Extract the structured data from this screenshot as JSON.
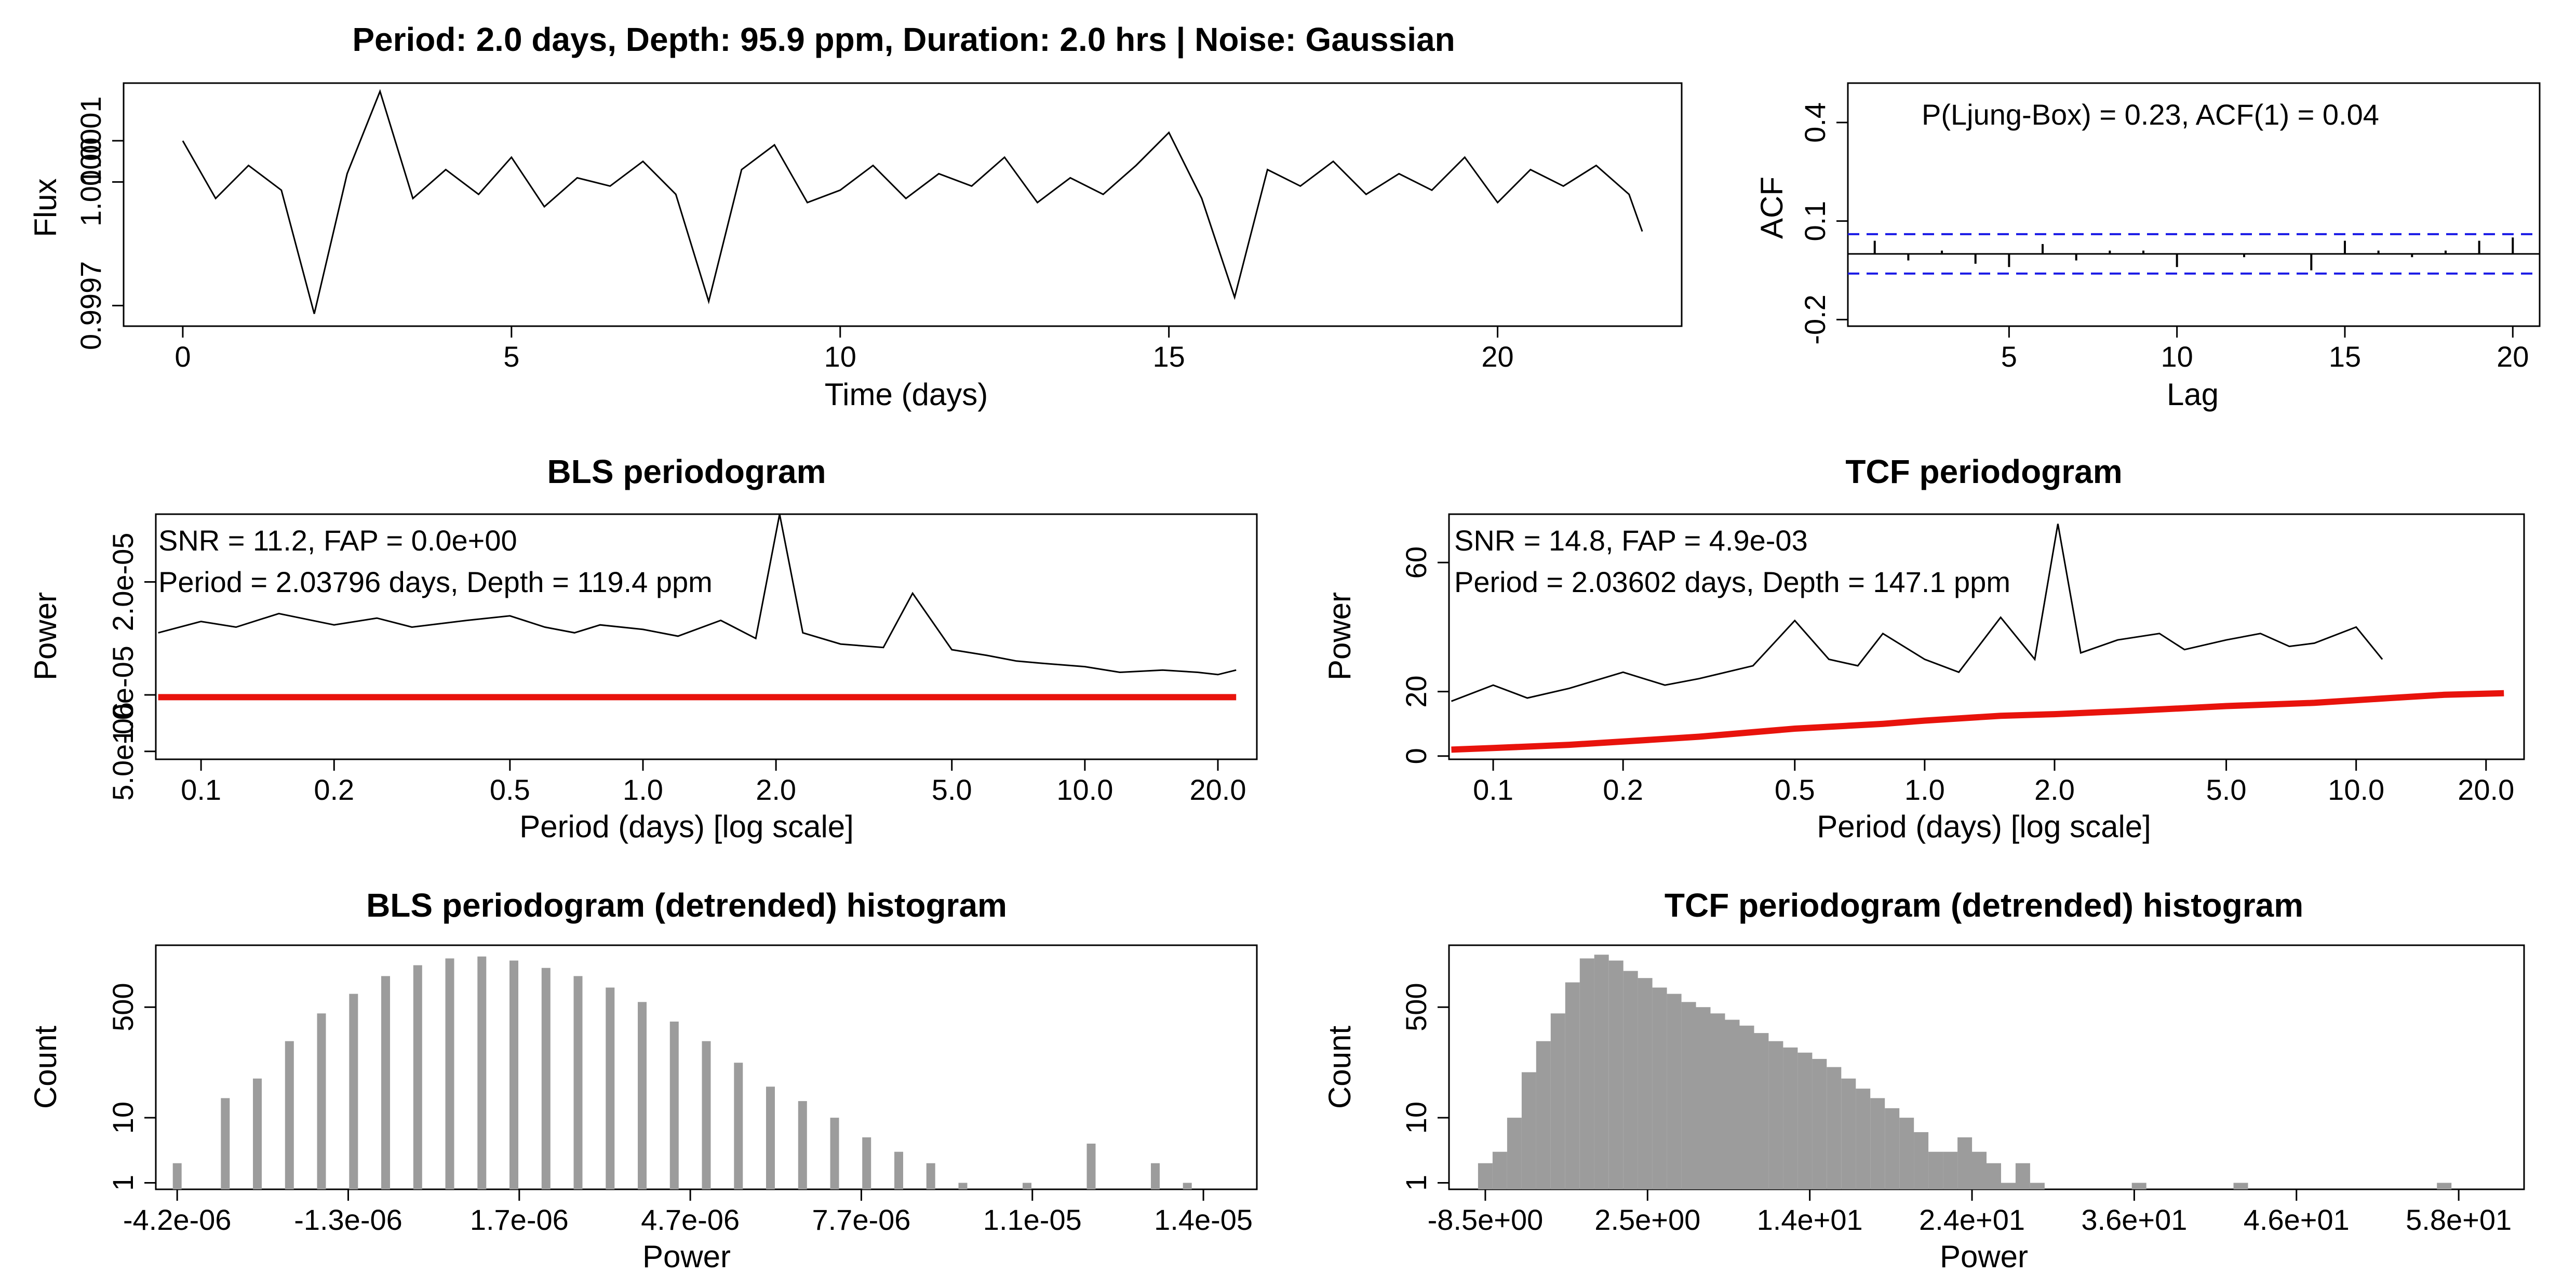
{
  "chart_data": [
    {
      "id": "lightcurve",
      "type": "line",
      "title": "Period: 2.0 days, Depth: 95.9 ppm, Duration: 2.0 hrs | Noise: Gaussian",
      "xlabel": "Time (days)",
      "ylabel": "Flux",
      "xlim": [
        -0.9,
        22.8
      ],
      "ylim": [
        0.99965,
        1.00024
      ],
      "x_ticks": [
        0,
        5,
        10,
        15,
        20
      ],
      "x_tick_labels": [
        "0",
        "5",
        "10",
        "15",
        "20"
      ],
      "y_ticks": [
        0.9997,
        1.0,
        1.0001
      ],
      "y_tick_labels": [
        "0.9997",
        "1.0000",
        "1.0001"
      ],
      "series": [
        {
          "x": [
            0,
            0.5,
            1,
            1.5,
            2,
            2.5,
            3,
            3.5,
            4,
            4.5,
            5,
            5.5,
            6,
            6.5,
            7,
            7.5,
            8,
            8.5,
            9,
            9.5,
            10,
            10.5,
            11,
            11.5,
            12,
            12.5,
            13,
            13.5,
            14,
            14.5,
            15,
            15.5,
            16,
            16.5,
            17,
            17.5,
            18,
            18.5,
            19,
            19.5,
            20,
            20.5,
            21,
            21.5,
            22,
            22.2
          ],
          "y": [
            1.0001,
            0.99996,
            1.00004,
            0.99998,
            0.99968,
            1.00002,
            1.00022,
            0.99996,
            1.00003,
            0.99997,
            1.00006,
            0.99994,
            1.00001,
            0.99999,
            1.00005,
            0.99997,
            0.99971,
            1.00003,
            1.00009,
            0.99995,
            0.99998,
            1.00004,
            0.99996,
            1.00002,
            0.99999,
            1.00006,
            0.99995,
            1.00001,
            0.99997,
            1.00004,
            1.00012,
            0.99996,
            0.99972,
            1.00003,
            0.99999,
            1.00005,
            0.99997,
            1.00002,
            0.99998,
            1.00006,
            0.99995,
            1.00003,
            0.99999,
            1.00004,
            0.99997,
            0.99988
          ]
        }
      ]
    },
    {
      "id": "acf",
      "type": "bar",
      "xlabel": "Lag",
      "ylabel": "ACF",
      "annotation": "P(Ljung-Box) = 0.23, ACF(1) = 0.04",
      "xlim": [
        0.2,
        20.8
      ],
      "ylim": [
        -0.22,
        0.52
      ],
      "x_ticks": [
        5,
        10,
        15,
        20
      ],
      "x_tick_labels": [
        "5",
        "10",
        "15",
        "20"
      ],
      "y_ticks": [
        -0.2,
        0.1,
        0.4
      ],
      "y_tick_labels": [
        "-0.2",
        "0.1",
        "0.4"
      ],
      "confidence_bounds": [
        -0.06,
        0.06
      ],
      "lags": [
        1,
        2,
        3,
        4,
        5,
        6,
        7,
        8,
        9,
        10,
        11,
        12,
        13,
        14,
        15,
        16,
        17,
        18,
        19,
        20
      ],
      "values": [
        0.04,
        -0.02,
        0.01,
        -0.03,
        -0.04,
        0.03,
        -0.02,
        0.01,
        0.01,
        -0.04,
        0.0,
        -0.01,
        0.0,
        -0.05,
        0.04,
        0.01,
        -0.01,
        0.01,
        0.04,
        0.05
      ]
    },
    {
      "id": "bls",
      "type": "line",
      "title": "BLS periodogram",
      "xlabel": "Period (days) [log scale]",
      "ylabel": "Power",
      "log_x": true,
      "xlim": [
        0.079,
        24.5
      ],
      "ylim": [
        4.3e-06,
        2.6e-05
      ],
      "x_ticks": [
        0.1,
        0.2,
        0.5,
        1.0,
        2.0,
        5.0,
        10.0,
        20.0
      ],
      "x_tick_labels": [
        "0.1",
        "0.2",
        "0.5",
        "1.0",
        "2.0",
        "5.0",
        "10.0",
        "20.0"
      ],
      "y_ticks": [
        5e-06,
        1e-05,
        2e-05
      ],
      "y_tick_labels": [
        "5.0e-06",
        "1.0e-05",
        "2.0e-05"
      ],
      "annotations": [
        "SNR = 11.2, FAP = 0.0e+00",
        "Period = 2.03796 days, Depth = 119.4 ppm"
      ],
      "series": [
        {
          "name": "power",
          "color": "#000000",
          "x": [
            0.08,
            0.1,
            0.12,
            0.15,
            0.2,
            0.25,
            0.3,
            0.4,
            0.5,
            0.6,
            0.7,
            0.8,
            1.0,
            1.2,
            1.5,
            1.8,
            2.038,
            2.3,
            2.8,
            3.5,
            4.076,
            5.0,
            6.0,
            7.0,
            8.0,
            10.0,
            12.0,
            15.0,
            18.0,
            20.0,
            22.0
          ],
          "y": [
            1.55e-05,
            1.65e-05,
            1.6e-05,
            1.72e-05,
            1.62e-05,
            1.68e-05,
            1.6e-05,
            1.66e-05,
            1.7e-05,
            1.6e-05,
            1.55e-05,
            1.62e-05,
            1.58e-05,
            1.52e-05,
            1.66e-05,
            1.5e-05,
            2.6e-05,
            1.55e-05,
            1.45e-05,
            1.42e-05,
            1.9e-05,
            1.4e-05,
            1.35e-05,
            1.3e-05,
            1.28e-05,
            1.25e-05,
            1.2e-05,
            1.22e-05,
            1.2e-05,
            1.18e-05,
            1.22e-05
          ]
        },
        {
          "name": "trend",
          "color": "#e8130c",
          "x": [
            0.08,
            22.0
          ],
          "y": [
            9.8e-06,
            9.8e-06
          ]
        }
      ]
    },
    {
      "id": "tcf",
      "type": "line",
      "title": "TCF periodogram",
      "xlabel": "Period (days) [log scale]",
      "ylabel": "Power",
      "log_x": true,
      "xlim": [
        0.079,
        24.5
      ],
      "ylim": [
        -1,
        75
      ],
      "x_ticks": [
        0.1,
        0.2,
        0.5,
        1.0,
        2.0,
        5.0,
        10.0,
        20.0
      ],
      "x_tick_labels": [
        "0.1",
        "0.2",
        "0.5",
        "1.0",
        "2.0",
        "5.0",
        "10.0",
        "20.0"
      ],
      "y_ticks": [
        0,
        20,
        60
      ],
      "y_tick_labels": [
        "0",
        "20",
        "60"
      ],
      "annotations": [
        "SNR = 14.8, FAP = 4.9e-03",
        "Period = 2.03602 days, Depth = 147.1 ppm"
      ],
      "series": [
        {
          "name": "power",
          "color": "#000000",
          "x": [
            0.08,
            0.1,
            0.12,
            0.15,
            0.2,
            0.25,
            0.3,
            0.4,
            0.5,
            0.6,
            0.7,
            0.8,
            1.0,
            1.2,
            1.5,
            1.8,
            2.036,
            2.3,
            2.8,
            3.5,
            4.0,
            5.0,
            6.0,
            7.0,
            8.0,
            10.0,
            11.5
          ],
          "y": [
            17,
            22,
            18,
            21,
            26,
            22,
            24,
            28,
            42,
            30,
            28,
            38,
            30,
            26,
            43,
            30,
            72,
            32,
            36,
            38,
            33,
            36,
            38,
            34,
            35,
            40,
            30
          ]
        },
        {
          "name": "trend",
          "color": "#e8130c",
          "x": [
            0.08,
            0.1,
            0.15,
            0.2,
            0.3,
            0.5,
            0.8,
            1.0,
            1.5,
            2.0,
            3.0,
            5.0,
            8.0,
            12.0,
            16.0,
            22.0
          ],
          "y": [
            2,
            2.5,
            3.5,
            4.5,
            6,
            8.5,
            10,
            11,
            12.5,
            13,
            14,
            15.5,
            16.5,
            18,
            19,
            19.5
          ]
        }
      ]
    },
    {
      "id": "bls_hist",
      "type": "bar",
      "title": "BLS periodogram (detrended) histogram",
      "xlabel": "Power",
      "ylabel": "Count",
      "log_y": true,
      "xlim": [
        -4.6e-06,
        1.6e-05
      ],
      "ylim_log10": [
        -0.1,
        3.65
      ],
      "y_ticks": [
        1,
        10,
        500
      ],
      "y_tick_labels": [
        "1",
        "10",
        "500"
      ],
      "x_tick_labels": [
        "-4.2e-06",
        "-1.3e-06",
        "1.7e-06",
        "4.7e-06",
        "7.7e-06",
        "1.1e-05",
        "1.4e-05"
      ],
      "bin_width": 3e-07,
      "bins": [
        -4.2e-06,
        -3.9e-06,
        -3.6e-06,
        -3.3e-06,
        -3e-06,
        -2.7e-06,
        -2.4e-06,
        -2.1e-06,
        -1.8e-06,
        -1.5e-06,
        -1.2e-06,
        -9e-07,
        -6e-07,
        -3e-07,
        0,
        3e-07,
        6e-07,
        9e-07,
        1.2e-06,
        1.5e-06,
        1.8e-06,
        2.1e-06,
        2.4e-06,
        2.7e-06,
        3e-06,
        3.3e-06,
        3.6e-06,
        3.9e-06,
        4.2e-06,
        4.5e-06,
        4.8e-06,
        5.1e-06,
        5.4e-06,
        5.7e-06,
        6e-06,
        6.3e-06,
        6.6e-06,
        6.9e-06,
        7.2e-06,
        7.5e-06,
        7.8e-06,
        8.1e-06,
        8.4e-06,
        8.7e-06,
        9e-06,
        9.3e-06,
        9.6e-06,
        9.9e-06,
        1.02e-05,
        1.05e-05,
        1.08e-05,
        1.11e-05,
        1.14e-05,
        1.17e-05,
        1.2e-05,
        1.23e-05,
        1.26e-05,
        1.29e-05,
        1.32e-05,
        1.35e-05,
        1.38e-05,
        1.41e-05,
        1.44e-05,
        1.47e-05,
        1.5e-05
      ],
      "counts": [
        2,
        0,
        0,
        20,
        0,
        40,
        0,
        150,
        0,
        400,
        0,
        800,
        0,
        1500,
        0,
        2200,
        0,
        2800,
        0,
        3000,
        0,
        2600,
        0,
        2000,
        0,
        1500,
        0,
        1000,
        0,
        600,
        0,
        300,
        0,
        150,
        0,
        70,
        0,
        30,
        0,
        18,
        0,
        10,
        0,
        5,
        0,
        3,
        0,
        2,
        0,
        1,
        0,
        0,
        0,
        1,
        0,
        0,
        0,
        4,
        0,
        0,
        0,
        2,
        0,
        1,
        0
      ]
    },
    {
      "id": "tcf_hist",
      "type": "bar",
      "title": "TCF periodogram (detrended) histogram",
      "xlabel": "Power",
      "ylabel": "Count",
      "log_y": true,
      "xlim": [
        -11,
        63
      ],
      "ylim_log10": [
        -0.1,
        3.65
      ],
      "y_ticks": [
        1,
        10,
        500
      ],
      "y_tick_labels": [
        "1",
        "10",
        "500"
      ],
      "x_tick_labels": [
        "-8.5e+00",
        "2.5e+00",
        "1.4e+01",
        "2.4e+01",
        "3.6e+01",
        "4.6e+01",
        "5.8e+01"
      ],
      "bin_width": 1,
      "bins": [
        -8.5,
        -7.5,
        -6.5,
        -5.5,
        -4.5,
        -3.5,
        -2.5,
        -1.5,
        -0.5,
        0.5,
        1.5,
        2.5,
        3.5,
        4.5,
        5.5,
        6.5,
        7.5,
        8.5,
        9.5,
        10.5,
        11.5,
        12.5,
        13.5,
        14.5,
        15.5,
        16.5,
        17.5,
        18.5,
        19.5,
        20.5,
        21.5,
        22.5,
        23.5,
        24.5,
        25.5,
        26.5,
        27.5,
        28.5,
        29.5,
        30.5,
        31.5,
        32.5,
        33.5,
        34.5,
        35.5,
        36.5,
        37.5,
        38.5,
        39.5,
        40.5,
        41.5,
        42.5,
        43.5,
        44.5,
        45.5,
        46.5,
        47.5,
        48.5,
        49.5,
        50.5,
        51.5,
        52.5,
        53.5,
        54.5,
        55.5,
        56.5,
        57.5,
        58.5
      ],
      "counts": [
        2,
        3,
        10,
        50,
        150,
        400,
        1200,
        2800,
        3200,
        2600,
        1800,
        1400,
        1000,
        800,
        600,
        500,
        400,
        320,
        260,
        200,
        150,
        120,
        100,
        80,
        60,
        40,
        28,
        20,
        14,
        10,
        6,
        3,
        3,
        5,
        3,
        2,
        1,
        2,
        1,
        0,
        0,
        0,
        0,
        0,
        0,
        1,
        0,
        0,
        0,
        0,
        0,
        0,
        1,
        0,
        0,
        0,
        0,
        0,
        0,
        0,
        0,
        0,
        0,
        0,
        0,
        0,
        1,
        0
      ]
    }
  ],
  "colors": {
    "line": "#000000",
    "trend": "#e8130c",
    "confidence": "#1a1ae6",
    "bar": "#9c9c9c"
  }
}
